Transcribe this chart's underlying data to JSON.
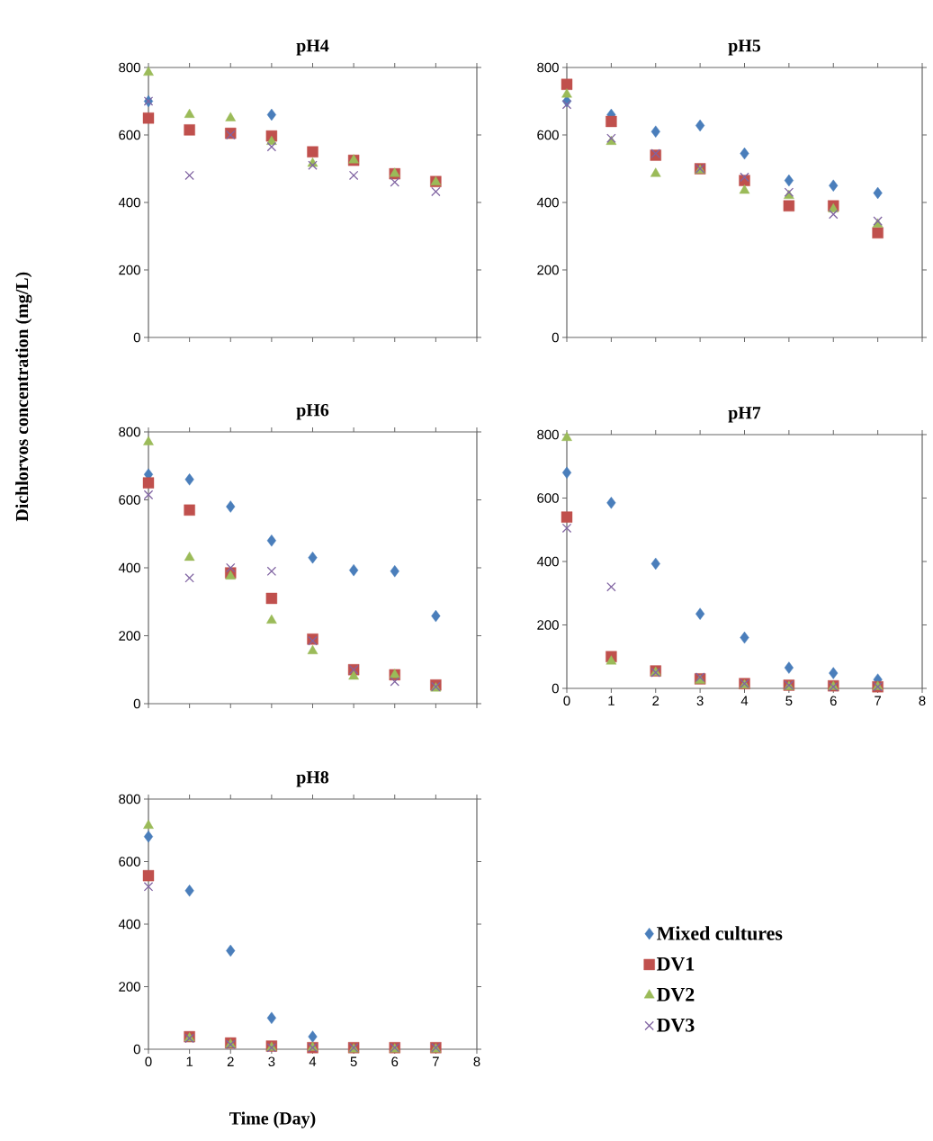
{
  "chart_data": [
    {
      "type": "scatter",
      "title": "pH4",
      "x": [
        0,
        1,
        2,
        3,
        4,
        5,
        6,
        7
      ],
      "xlim": [
        0,
        8
      ],
      "ylim": [
        0,
        800
      ],
      "xticks": [
        0,
        1,
        2,
        3,
        4,
        5,
        6,
        7,
        8
      ],
      "yticks": [
        0,
        200,
        400,
        600,
        800
      ],
      "tick_labels": "y",
      "legend": false,
      "series": [
        {
          "color": "#4a7ebb",
          "marker": "diamond",
          "values": [
            700,
            null,
            null,
            660,
            null,
            null,
            null,
            null
          ]
        },
        {
          "color": "#c0504d",
          "marker": "square",
          "values": [
            650,
            615,
            605,
            597,
            550,
            525,
            485,
            462
          ]
        },
        {
          "color": "#9bbb59",
          "marker": "triangle",
          "values": [
            785,
            660,
            650,
            580,
            515,
            525,
            485,
            460
          ]
        },
        {
          "color": "#8064a2",
          "marker": "cross",
          "values": [
            700,
            480,
            600,
            565,
            510,
            480,
            460,
            432
          ]
        }
      ]
    },
    {
      "type": "scatter",
      "title": "pH5",
      "x": [
        0,
        1,
        2,
        3,
        4,
        5,
        6,
        7
      ],
      "xlim": [
        0,
        8
      ],
      "ylim": [
        0,
        800
      ],
      "xticks": [
        0,
        1,
        2,
        3,
        4,
        5,
        6,
        7,
        8
      ],
      "yticks": [
        0,
        200,
        400,
        600,
        800
      ],
      "tick_labels": "y",
      "legend": false,
      "series": [
        {
          "color": "#4a7ebb",
          "marker": "diamond",
          "values": [
            700,
            660,
            610,
            628,
            545,
            465,
            450,
            428
          ]
        },
        {
          "color": "#c0504d",
          "marker": "square",
          "values": [
            750,
            640,
            540,
            500,
            465,
            390,
            390,
            310
          ]
        },
        {
          "color": "#9bbb59",
          "marker": "triangle",
          "values": [
            720,
            580,
            485,
            495,
            435,
            420,
            380,
            335
          ]
        },
        {
          "color": "#8064a2",
          "marker": "cross",
          "values": [
            690,
            590,
            545,
            500,
            475,
            430,
            365,
            345
          ]
        }
      ]
    },
    {
      "type": "scatter",
      "title": "pH6",
      "ylabel": "Dichlorvos concentration (mg/L)",
      "x": [
        0,
        1,
        2,
        3,
        4,
        5,
        6,
        7
      ],
      "xlim": [
        0,
        8
      ],
      "ylim": [
        0,
        800
      ],
      "xticks": [
        0,
        1,
        2,
        3,
        4,
        5,
        6,
        7,
        8
      ],
      "yticks": [
        0,
        200,
        400,
        600,
        800
      ],
      "tick_labels": "y",
      "legend": false,
      "series": [
        {
          "color": "#4a7ebb",
          "marker": "diamond",
          "values": [
            675,
            660,
            580,
            480,
            430,
            393,
            390,
            258
          ]
        },
        {
          "color": "#c0504d",
          "marker": "square",
          "values": [
            650,
            570,
            385,
            310,
            190,
            100,
            85,
            55
          ]
        },
        {
          "color": "#9bbb59",
          "marker": "triangle",
          "values": [
            770,
            430,
            375,
            245,
            155,
            80,
            85,
            45
          ]
        },
        {
          "color": "#8064a2",
          "marker": "cross",
          "values": [
            615,
            370,
            400,
            390,
            185,
            100,
            65,
            50
          ]
        }
      ]
    },
    {
      "type": "scatter",
      "title": "pH7",
      "x": [
        0,
        1,
        2,
        3,
        4,
        5,
        6,
        7
      ],
      "xlim": [
        0,
        8
      ],
      "ylim": [
        0,
        800
      ],
      "xticks": [
        0,
        1,
        2,
        3,
        4,
        5,
        6,
        7,
        8
      ],
      "yticks": [
        0,
        200,
        400,
        600,
        800
      ],
      "legend": false,
      "series": [
        {
          "color": "#4a7ebb",
          "marker": "diamond",
          "values": [
            680,
            585,
            393,
            235,
            160,
            65,
            48,
            28
          ]
        },
        {
          "color": "#c0504d",
          "marker": "square",
          "values": [
            540,
            100,
            55,
            30,
            15,
            10,
            8,
            5
          ]
        },
        {
          "color": "#9bbb59",
          "marker": "triangle",
          "values": [
            790,
            85,
            50,
            25,
            10,
            5,
            5,
            5
          ]
        },
        {
          "color": "#8064a2",
          "marker": "cross",
          "values": [
            505,
            320,
            50,
            35,
            15,
            10,
            5,
            5
          ]
        }
      ]
    },
    {
      "type": "scatter",
      "title": "pH8",
      "xlabel": "Time (Day)",
      "x": [
        0,
        1,
        2,
        3,
        4,
        5,
        6,
        7
      ],
      "xlim": [
        0,
        8
      ],
      "ylim": [
        0,
        800
      ],
      "xticks": [
        0,
        1,
        2,
        3,
        4,
        5,
        6,
        7,
        8
      ],
      "yticks": [
        0,
        200,
        400,
        600,
        800
      ],
      "legend": "right",
      "series": [
        {
          "name": "Mixed cultures",
          "color": "#4a7ebb",
          "marker": "diamond",
          "values": [
            680,
            507,
            315,
            100,
            40,
            null,
            null,
            null
          ]
        },
        {
          "name": "DV1",
          "color": "#c0504d",
          "marker": "square",
          "values": [
            555,
            40,
            20,
            10,
            5,
            5,
            5,
            5
          ]
        },
        {
          "name": "DV2",
          "color": "#9bbb59",
          "marker": "triangle",
          "values": [
            715,
            35,
            15,
            5,
            5,
            0,
            0,
            0
          ]
        },
        {
          "name": "DV3",
          "color": "#8064a2",
          "marker": "cross",
          "values": [
            520,
            35,
            15,
            5,
            5,
            5,
            5,
            5
          ]
        }
      ]
    }
  ]
}
